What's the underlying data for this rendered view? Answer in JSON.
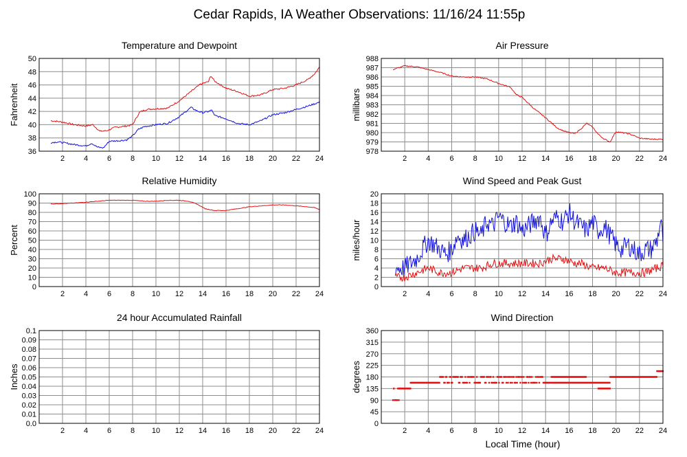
{
  "title": "Cedar Rapids, IA Weather Observations: 11/16/24 11:55p",
  "xaxis_label": "Local Time (hour)",
  "colors": {
    "red": "#e01010",
    "blue": "#1010e0"
  },
  "chart_data": [
    {
      "id": "temp",
      "type": "line",
      "title": "Temperature and Dewpoint",
      "ylabel": "Fahrenheit",
      "xlim": [
        0,
        24
      ],
      "ylim": [
        36,
        50
      ],
      "xticks": [
        2,
        4,
        6,
        8,
        10,
        12,
        14,
        16,
        18,
        20,
        22,
        24
      ],
      "yticks": [
        36,
        38,
        40,
        42,
        44,
        46,
        48,
        50
      ],
      "series": [
        {
          "color": "red",
          "noise": 0.12,
          "points": [
            [
              1,
              40.6
            ],
            [
              2,
              40.4
            ],
            [
              3,
              40.0
            ],
            [
              4,
              39.8
            ],
            [
              4.6,
              40.0
            ],
            [
              5.2,
              39.0
            ],
            [
              5.8,
              39.1
            ],
            [
              6.5,
              39.6
            ],
            [
              7.5,
              39.8
            ],
            [
              8,
              40.0
            ],
            [
              8.6,
              41.9
            ],
            [
              9.2,
              42.3
            ],
            [
              10,
              42.4
            ],
            [
              11,
              42.5
            ],
            [
              12,
              43.6
            ],
            [
              13,
              45.0
            ],
            [
              13.8,
              46.1
            ],
            [
              14.5,
              46.5
            ],
            [
              14.7,
              47.4
            ],
            [
              15,
              46.6
            ],
            [
              16,
              45.5
            ],
            [
              17,
              45.0
            ],
            [
              18,
              44.3
            ],
            [
              19,
              44.5
            ],
            [
              20,
              45.3
            ],
            [
              21,
              45.5
            ],
            [
              22,
              46.0
            ],
            [
              23,
              46.8
            ],
            [
              23.6,
              47.7
            ],
            [
              24,
              48.7
            ]
          ]
        },
        {
          "color": "blue",
          "noise": 0.12,
          "points": [
            [
              1,
              37.3
            ],
            [
              1.6,
              37.4
            ],
            [
              2,
              37.3
            ],
            [
              3,
              37.0
            ],
            [
              4,
              36.8
            ],
            [
              4.5,
              37.2
            ],
            [
              5,
              36.6
            ],
            [
              5.5,
              36.5
            ],
            [
              6,
              37.5
            ],
            [
              7,
              37.6
            ],
            [
              7.5,
              37.7
            ],
            [
              8,
              38.3
            ],
            [
              8.5,
              39.3
            ],
            [
              9,
              39.7
            ],
            [
              10,
              40.0
            ],
            [
              11,
              40.2
            ],
            [
              12,
              41.2
            ],
            [
              13,
              42.6
            ],
            [
              13.5,
              42.1
            ],
            [
              14,
              41.8
            ],
            [
              14.5,
              42.0
            ],
            [
              14.8,
              42.2
            ],
            [
              15,
              41.4
            ],
            [
              16,
              40.9
            ],
            [
              17,
              40.2
            ],
            [
              18,
              40.0
            ],
            [
              19,
              40.6
            ],
            [
              20,
              41.5
            ],
            [
              21,
              41.8
            ],
            [
              22,
              42.3
            ],
            [
              23,
              42.8
            ],
            [
              24,
              43.4
            ]
          ]
        }
      ]
    },
    {
      "id": "pressure",
      "type": "line",
      "title": "Air Pressure",
      "ylabel": "millibars",
      "xlim": [
        0,
        24
      ],
      "ylim": [
        978,
        988
      ],
      "xticks": [
        2,
        4,
        6,
        8,
        10,
        12,
        14,
        16,
        18,
        20,
        22,
        24
      ],
      "yticks": [
        978,
        979,
        980,
        981,
        982,
        983,
        984,
        985,
        986,
        987,
        988
      ],
      "series": [
        {
          "color": "red",
          "noise": 0.06,
          "points": [
            [
              1,
              986.8
            ],
            [
              1.5,
              987.0
            ],
            [
              2,
              987.2
            ],
            [
              3,
              987.1
            ],
            [
              4,
              986.8
            ],
            [
              5,
              986.5
            ],
            [
              6,
              986.1
            ],
            [
              7,
              986.0
            ],
            [
              8,
              986.0
            ],
            [
              9,
              985.8
            ],
            [
              10,
              985.3
            ],
            [
              11,
              984.9
            ],
            [
              11.5,
              984.1
            ],
            [
              12,
              983.8
            ],
            [
              13,
              982.6
            ],
            [
              14,
              981.6
            ],
            [
              15,
              980.5
            ],
            [
              15.5,
              980.2
            ],
            [
              16,
              980.0
            ],
            [
              16.5,
              979.9
            ],
            [
              17,
              980.4
            ],
            [
              17.5,
              981.0
            ],
            [
              18,
              980.6
            ],
            [
              18.5,
              979.8
            ],
            [
              19,
              979.3
            ],
            [
              19.5,
              979.0
            ],
            [
              19.8,
              979.7
            ],
            [
              20,
              980.1
            ],
            [
              21,
              979.9
            ],
            [
              21.5,
              979.7
            ],
            [
              22,
              979.4
            ],
            [
              23,
              979.3
            ],
            [
              24,
              979.3
            ]
          ]
        }
      ]
    },
    {
      "id": "humidity",
      "type": "line",
      "title": "Relative Humidity",
      "ylabel": "Percent",
      "xlim": [
        0,
        24
      ],
      "ylim": [
        0,
        100
      ],
      "xticks": [
        2,
        4,
        6,
        8,
        10,
        12,
        14,
        16,
        18,
        20,
        22,
        24
      ],
      "yticks": [
        0,
        10,
        20,
        30,
        40,
        50,
        60,
        70,
        80,
        90,
        100
      ],
      "series": [
        {
          "color": "red",
          "noise": 0.3,
          "points": [
            [
              1,
              89
            ],
            [
              2,
              89.5
            ],
            [
              3,
              90
            ],
            [
              4,
              91
            ],
            [
              5,
              92
            ],
            [
              6,
              93
            ],
            [
              7,
              93
            ],
            [
              8,
              93
            ],
            [
              9,
              92
            ],
            [
              10,
              92
            ],
            [
              11,
              93
            ],
            [
              12,
              93
            ],
            [
              12.8,
              92
            ],
            [
              13.5,
              89
            ],
            [
              14.2,
              84
            ],
            [
              15,
              82
            ],
            [
              16,
              82
            ],
            [
              17,
              84
            ],
            [
              18,
              86
            ],
            [
              19,
              87
            ],
            [
              20,
              88
            ],
            [
              21,
              88
            ],
            [
              22,
              87
            ],
            [
              23,
              86
            ],
            [
              23.6,
              85
            ],
            [
              24,
              83
            ]
          ]
        }
      ]
    },
    {
      "id": "wind",
      "type": "line",
      "title": "Wind Speed and Peak Gust",
      "ylabel": "miles/hour",
      "xlim": [
        0,
        24
      ],
      "ylim": [
        0,
        20
      ],
      "xticks": [
        2,
        4,
        6,
        8,
        10,
        12,
        14,
        16,
        18,
        20,
        22,
        24
      ],
      "yticks": [
        0,
        2,
        4,
        6,
        8,
        10,
        12,
        14,
        16,
        18,
        20
      ],
      "series": [
        {
          "color": "blue",
          "noise": 2.2,
          "points": [
            [
              1.2,
              4
            ],
            [
              2,
              4
            ],
            [
              2.5,
              5
            ],
            [
              3,
              6
            ],
            [
              3.5,
              8
            ],
            [
              4,
              10
            ],
            [
              4.5,
              9
            ],
            [
              5,
              8
            ],
            [
              5.5,
              7
            ],
            [
              6,
              8
            ],
            [
              6.5,
              11
            ],
            [
              7,
              10
            ],
            [
              7.5,
              11
            ],
            [
              8,
              12
            ],
            [
              8.5,
              11
            ],
            [
              9,
              14
            ],
            [
              9.5,
              13
            ],
            [
              10,
              15
            ],
            [
              10.5,
              14
            ],
            [
              11,
              13
            ],
            [
              11.5,
              14
            ],
            [
              12,
              12
            ],
            [
              12.5,
              13
            ],
            [
              13,
              14
            ],
            [
              13.5,
              15
            ],
            [
              14,
              11
            ],
            [
              14.5,
              14
            ],
            [
              15,
              15
            ],
            [
              15.5,
              14
            ],
            [
              16,
              16
            ],
            [
              16.5,
              14
            ],
            [
              17,
              13
            ],
            [
              17.5,
              12
            ],
            [
              18,
              14
            ],
            [
              18.5,
              12
            ],
            [
              19,
              13
            ],
            [
              19.5,
              11
            ],
            [
              20,
              9
            ],
            [
              20.5,
              8
            ],
            [
              21,
              9
            ],
            [
              21.5,
              8
            ],
            [
              22,
              7
            ],
            [
              22.5,
              8
            ],
            [
              23,
              8
            ],
            [
              23.5,
              10
            ],
            [
              23.8,
              14
            ],
            [
              24,
              10
            ]
          ]
        },
        {
          "color": "red",
          "noise": 0.9,
          "points": [
            [
              1.2,
              2
            ],
            [
              2,
              2
            ],
            [
              2.5,
              2.5
            ],
            [
              3,
              3
            ],
            [
              3.5,
              3.5
            ],
            [
              4,
              4
            ],
            [
              4.5,
              3.5
            ],
            [
              5,
              3
            ],
            [
              5.5,
              3
            ],
            [
              6,
              3
            ],
            [
              6.5,
              3.5
            ],
            [
              7,
              4
            ],
            [
              7.5,
              4
            ],
            [
              8,
              4
            ],
            [
              8.5,
              4
            ],
            [
              9,
              4.5
            ],
            [
              9.5,
              5
            ],
            [
              10,
              5
            ],
            [
              10.5,
              5
            ],
            [
              11,
              5
            ],
            [
              11.5,
              5
            ],
            [
              12,
              5
            ],
            [
              12.5,
              5
            ],
            [
              13,
              5
            ],
            [
              13.5,
              5
            ],
            [
              14,
              5.5
            ],
            [
              14.5,
              6
            ],
            [
              15,
              6
            ],
            [
              15.5,
              6
            ],
            [
              16,
              5.5
            ],
            [
              16.5,
              5
            ],
            [
              17,
              5
            ],
            [
              17.5,
              4.5
            ],
            [
              18,
              4
            ],
            [
              18.5,
              4
            ],
            [
              19,
              4
            ],
            [
              19.5,
              3.5
            ],
            [
              20,
              3
            ],
            [
              20.5,
              3
            ],
            [
              21,
              3
            ],
            [
              21.5,
              3
            ],
            [
              22,
              3
            ],
            [
              22.5,
              3
            ],
            [
              23,
              3.5
            ],
            [
              23.5,
              4
            ],
            [
              24,
              4.5
            ]
          ]
        }
      ]
    },
    {
      "id": "rain",
      "type": "line",
      "title": "24 hour Accumulated Rainfall",
      "ylabel": "Inches",
      "xlim": [
        0,
        24
      ],
      "ylim": [
        0,
        0.1
      ],
      "xticks": [
        2,
        4,
        6,
        8,
        10,
        12,
        14,
        16,
        18,
        20,
        22,
        24
      ],
      "yticks": [
        "0.0",
        "0.01",
        "0.02",
        "0.03",
        "0.04",
        "0.05",
        "0.06",
        "0.07",
        "0.08",
        "0.09",
        "0.1"
      ],
      "series": [
        {
          "color": "red",
          "noise": 0,
          "points": [
            [
              1,
              0
            ],
            [
              24,
              0
            ]
          ]
        }
      ]
    },
    {
      "id": "winddir",
      "type": "scatter",
      "title": "Wind Direction",
      "ylabel": "degrees",
      "xlim": [
        0,
        24
      ],
      "ylim": [
        0,
        360
      ],
      "xticks": [
        2,
        4,
        6,
        8,
        10,
        12,
        14,
        16,
        18,
        20,
        22,
        24
      ],
      "yticks": [
        0,
        45,
        90,
        135,
        180,
        225,
        270,
        315,
        360
      ],
      "series": [
        {
          "color": "red",
          "segments": [
            [
              1,
              1.5,
              90,
              135
            ],
            [
              1.5,
              2.5,
              135,
              135
            ],
            [
              2.5,
              5,
              157.5,
              157.5
            ],
            [
              5,
              8,
              157.5,
              180
            ],
            [
              8,
              14,
              157.5,
              180
            ],
            [
              14,
              19.5,
              157.5,
              157.5
            ],
            [
              14.5,
              17.5,
              180,
              180
            ],
            [
              18.5,
              19.5,
              135,
              135
            ],
            [
              19.5,
              21.5,
              180,
              180
            ],
            [
              21.5,
              23.5,
              180,
              180
            ],
            [
              23.5,
              24,
              202.5,
              202.5
            ]
          ]
        }
      ]
    }
  ]
}
